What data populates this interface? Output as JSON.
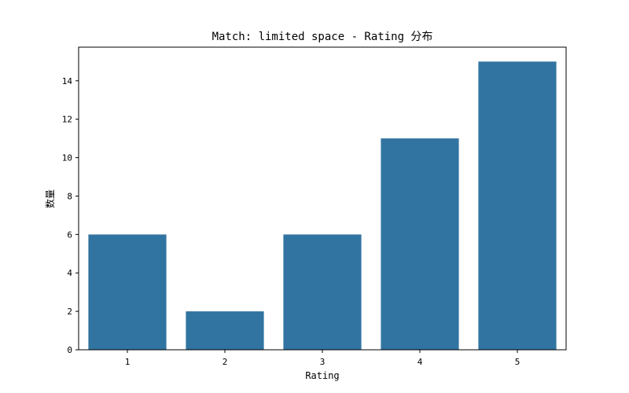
{
  "chart_data": {
    "type": "bar",
    "title": "Match: limited space - Rating 分布",
    "xlabel": "Rating",
    "ylabel": "数量",
    "categories": [
      "1",
      "2",
      "3",
      "4",
      "5"
    ],
    "values": [
      6,
      2,
      6,
      11,
      15
    ],
    "ylim": [
      0,
      15.75
    ],
    "yticks": [
      "0",
      "2",
      "4",
      "6",
      "8",
      "10",
      "12",
      "14"
    ],
    "grid": false,
    "legend": "none",
    "bar_color": "#3274a1"
  }
}
